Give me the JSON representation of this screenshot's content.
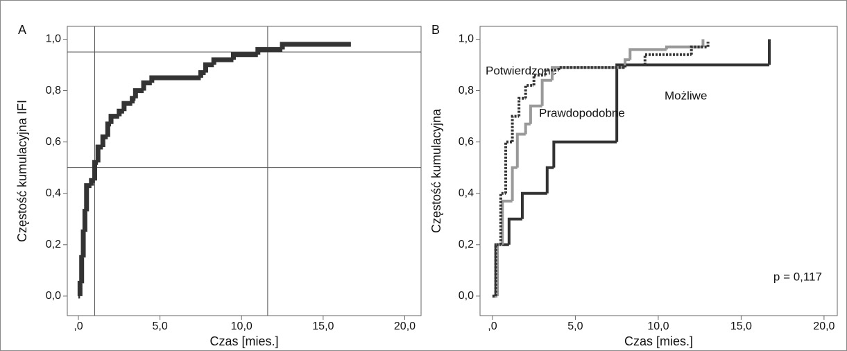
{
  "chart_data": [
    {
      "type": "step",
      "panel_label": "A",
      "y_label": "Częstość kumulacyjna IFI",
      "x_label": "Czas [mies.]",
      "x": [
        0,
        0.1,
        0.2,
        0.3,
        0.4,
        0.5,
        0.8,
        1.0,
        1.2,
        1.5,
        1.8,
        2.0,
        2.5,
        2.8,
        3.3,
        3.5,
        4.0,
        4.5,
        7.5,
        7.8,
        8.3,
        9.5,
        11.0,
        12.5,
        16.7
      ],
      "values": [
        0,
        0.05,
        0.15,
        0.25,
        0.33,
        0.43,
        0.45,
        0.52,
        0.58,
        0.62,
        0.67,
        0.7,
        0.72,
        0.75,
        0.77,
        0.8,
        0.83,
        0.85,
        0.87,
        0.9,
        0.92,
        0.94,
        0.96,
        0.98,
        0.98
      ],
      "color": "#333333",
      "reference_lines": {
        "x": [
          1.0,
          11.6
        ],
        "y": [
          0.5,
          0.95
        ]
      },
      "xlim": [
        -0.68,
        21.0
      ],
      "ylim": [
        -0.076,
        1.05
      ],
      "xticks": [
        {
          "value": 0,
          "label": ",0"
        },
        {
          "value": 5,
          "label": "5,0"
        },
        {
          "value": 10,
          "label": "10,0"
        },
        {
          "value": 15,
          "label": "15,0"
        },
        {
          "value": 20,
          "label": "20,0"
        }
      ],
      "yticks": [
        {
          "value": 0,
          "label": "0,0"
        },
        {
          "value": 0.2,
          "label": "0,2"
        },
        {
          "value": 0.4,
          "label": "0,4"
        },
        {
          "value": 0.6,
          "label": "0,6"
        },
        {
          "value": 0.8,
          "label": "0,8"
        },
        {
          "value": 1.0,
          "label": "1,0"
        }
      ]
    },
    {
      "type": "step",
      "panel_label": "B",
      "y_label": "Częstość kumulacyjna",
      "x_label": "Czas [mies.]",
      "series": [
        {
          "name": "Potwierdzone",
          "color": "#333333",
          "dash": false,
          "x": [
            0,
            0.2,
            1.0,
            1.8,
            3.3,
            3.7,
            7.5,
            16.7
          ],
          "values": [
            0,
            0.2,
            0.3,
            0.4,
            0.5,
            0.6,
            0.9,
            1.0
          ]
        },
        {
          "name": "Prawdopodobne",
          "color": "#999999",
          "dash": false,
          "x": [
            0,
            0.3,
            0.6,
            1.2,
            1.5,
            2.0,
            2.3,
            3.0,
            3.6,
            8.0,
            8.3,
            10.5,
            12.7
          ],
          "values": [
            0,
            0.2,
            0.37,
            0.5,
            0.63,
            0.67,
            0.74,
            0.84,
            0.89,
            0.92,
            0.96,
            0.97,
            1.0
          ]
        },
        {
          "name": "Możliwe",
          "color": "#333333",
          "dash": true,
          "x": [
            0,
            0.2,
            0.5,
            0.8,
            1.2,
            1.6,
            2.0,
            2.5,
            3.2,
            4.0,
            8.0,
            9.2,
            12.0,
            13.0
          ],
          "values": [
            0,
            0.2,
            0.4,
            0.6,
            0.7,
            0.77,
            0.82,
            0.86,
            0.88,
            0.89,
            0.9,
            0.94,
            0.97,
            0.99
          ]
        }
      ],
      "annotation": "p = 0,117",
      "xlim": [
        -0.75,
        20.8
      ],
      "ylim": [
        -0.076,
        1.05
      ],
      "xticks": [
        {
          "value": 0,
          "label": ",0"
        },
        {
          "value": 5,
          "label": "5,0"
        },
        {
          "value": 10,
          "label": "10,0"
        },
        {
          "value": 15,
          "label": "15,0"
        },
        {
          "value": 20,
          "label": "20,0"
        }
      ],
      "yticks": [
        {
          "value": 0,
          "label": "0,0"
        },
        {
          "value": 0.2,
          "label": "0,2"
        },
        {
          "value": 0.4,
          "label": "0,4"
        },
        {
          "value": 0.6,
          "label": "0,6"
        },
        {
          "value": 0.8,
          "label": "0,8"
        },
        {
          "value": 1.0,
          "label": "1,0"
        }
      ]
    }
  ]
}
